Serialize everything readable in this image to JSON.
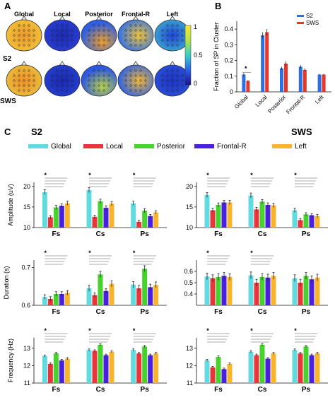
{
  "colors": {
    "global": "#61DAE0",
    "local": "#E8343A",
    "posterior": "#47D22E",
    "frontal_r": "#4A1FE0",
    "left": "#F7B52E",
    "s2_blue": "#2C6FE0",
    "sws_red": "#E8362A",
    "error": "#222222",
    "axis": "#111111"
  },
  "panel_a": {
    "letter": "A",
    "row_labels": [
      "S2",
      "SWS"
    ],
    "col_labels": [
      "Global",
      "Local",
      "Posterior",
      "Frontal-R",
      "Left"
    ],
    "colorbar_ticks": [
      "1",
      "0.5",
      "0"
    ]
  },
  "panel_b": {
    "letter": "B"
  },
  "panel_c": {
    "letter": "C",
    "group_labels": [
      "S2",
      "SWS"
    ],
    "legend": [
      "Global",
      "Local",
      "Posterior",
      "Frontal-R",
      "Left"
    ]
  },
  "chart_data": [
    {
      "id": "fraction",
      "type": "bar",
      "ylabel": "Fraction of SP in Cluster",
      "categories": [
        "Global",
        "Local",
        "Posterior",
        "Frontal-R",
        "Left"
      ],
      "ylim": [
        0,
        0.45
      ],
      "yticks": [
        0,
        0.1,
        0.2,
        0.3,
        0.4
      ],
      "yticklabels": [
        "0",
        "0.1",
        "0.2",
        "0.3",
        "0.4"
      ],
      "series": [
        {
          "name": "S2",
          "values": [
            0.11,
            0.36,
            0.15,
            0.16,
            0.11
          ],
          "errors": [
            0.01,
            0.02,
            0.01,
            0.01,
            0.005
          ]
        },
        {
          "name": "SWS",
          "values": [
            0.07,
            0.38,
            0.18,
            0.14,
            0.11
          ],
          "errors": [
            0.005,
            0.02,
            0.015,
            0.01,
            0.005
          ]
        }
      ],
      "significance": [
        "*"
      ]
    },
    {
      "id": "amp_s2",
      "type": "bar",
      "ylabel": "Amplitude (uV)",
      "categories": [
        "Fs",
        "Cs",
        "Ps"
      ],
      "ylim": [
        10,
        21
      ],
      "yticks": [
        10,
        15,
        20
      ],
      "yticklabels": [
        "10",
        "15",
        "20"
      ],
      "values": [
        [
          18.6,
          12.5,
          14.9,
          15.3,
          15.9
        ],
        [
          19.1,
          12.6,
          16.4,
          14.8,
          15.8
        ],
        [
          15.9,
          11.4,
          14.1,
          12.8,
          13.7
        ]
      ],
      "errors": [
        [
          0.6,
          0.4,
          0.5,
          0.5,
          0.5
        ],
        [
          0.6,
          0.4,
          0.5,
          0.5,
          0.5
        ],
        [
          0.5,
          0.4,
          0.5,
          0.4,
          0.4
        ]
      ],
      "significance": [
        "*",
        "*",
        "*"
      ]
    },
    {
      "id": "amp_sws",
      "type": "bar",
      "ylabel": "",
      "categories": [
        "Fs",
        "Cs",
        "Ps"
      ],
      "ylim": [
        10,
        21
      ],
      "yticks": [
        10,
        15,
        20
      ],
      "yticklabels": [
        "10",
        "15",
        "20"
      ],
      "values": [
        [
          17.9,
          14.2,
          15.5,
          16.1,
          16.1
        ],
        [
          17.8,
          14.4,
          16.3,
          15.5,
          15.4
        ],
        [
          14.2,
          11.8,
          13.2,
          13.0,
          12.8
        ]
      ],
      "errors": [
        [
          0.6,
          0.5,
          0.5,
          0.5,
          0.5
        ],
        [
          0.6,
          0.5,
          0.5,
          0.5,
          0.5
        ],
        [
          0.5,
          0.4,
          0.4,
          0.4,
          0.4
        ]
      ],
      "significance": [
        "*",
        "*",
        "*"
      ]
    },
    {
      "id": "dur_s2",
      "type": "bar",
      "ylabel": "Duration (s)",
      "categories": [
        "Fs",
        "Cs",
        "Ps"
      ],
      "ylim": [
        0.6,
        0.72
      ],
      "yticks": [
        0.6,
        0.7
      ],
      "yticklabels": [
        "0.6",
        "0.7"
      ],
      "values": [
        [
          0.622,
          0.617,
          0.63,
          0.63,
          0.633
        ],
        [
          0.645,
          0.627,
          0.682,
          0.638,
          0.657
        ],
        [
          0.655,
          0.645,
          0.697,
          0.648,
          0.654
        ]
      ],
      "errors": [
        [
          0.006,
          0.006,
          0.006,
          0.006,
          0.006
        ],
        [
          0.008,
          0.006,
          0.008,
          0.006,
          0.008
        ],
        [
          0.008,
          0.008,
          0.008,
          0.008,
          0.008
        ]
      ],
      "significance": [
        "*",
        "*",
        "*"
      ]
    },
    {
      "id": "dur_sws",
      "type": "bar",
      "ylabel": "",
      "categories": [
        "Fs",
        "Cs",
        "Ps"
      ],
      "ylim": [
        0.3,
        0.7
      ],
      "yticks": [
        0.4,
        0.5,
        0.6
      ],
      "yticklabels": [
        "0.4",
        "0.5",
        "0.6"
      ],
      "values": [
        [
          0.555,
          0.54,
          0.55,
          0.56,
          0.55
        ],
        [
          0.565,
          0.5,
          0.55,
          0.545,
          0.56
        ],
        [
          0.54,
          0.5,
          0.56,
          0.53,
          0.545
        ]
      ],
      "errors": [
        [
          0.03,
          0.03,
          0.03,
          0.03,
          0.03
        ],
        [
          0.03,
          0.03,
          0.03,
          0.03,
          0.03
        ],
        [
          0.03,
          0.03,
          0.03,
          0.03,
          0.03
        ]
      ],
      "significance": [
        "*",
        "*"
      ]
    },
    {
      "id": "freq_s2",
      "type": "bar",
      "ylabel": "Frequency (Hz)",
      "categories": [
        "Fs",
        "Cs",
        "Ps"
      ],
      "ylim": [
        11,
        13.6
      ],
      "yticks": [
        11,
        12,
        13
      ],
      "yticklabels": [
        "11",
        "12",
        "13"
      ],
      "values": [
        [
          12.55,
          12.1,
          12.7,
          12.3,
          12.4
        ],
        [
          12.9,
          12.85,
          13.2,
          12.6,
          12.8
        ],
        [
          12.9,
          12.7,
          13.1,
          12.6,
          12.7
        ]
      ],
      "errors": [
        [
          0.06,
          0.06,
          0.06,
          0.06,
          0.06
        ],
        [
          0.06,
          0.06,
          0.06,
          0.06,
          0.06
        ],
        [
          0.06,
          0.06,
          0.06,
          0.06,
          0.06
        ]
      ],
      "significance": [
        "*",
        "*",
        "*"
      ]
    },
    {
      "id": "freq_sws",
      "type": "bar",
      "ylabel": "",
      "categories": [
        "Fs",
        "Cs",
        "Ps"
      ],
      "ylim": [
        11,
        13.6
      ],
      "yticks": [
        11,
        12,
        13
      ],
      "yticklabels": [
        "11",
        "12",
        "13"
      ],
      "values": [
        [
          12.3,
          11.9,
          12.5,
          11.8,
          12.1
        ],
        [
          12.8,
          12.6,
          13.2,
          12.4,
          12.7
        ],
        [
          12.9,
          12.7,
          13.1,
          12.6,
          12.7
        ]
      ],
      "errors": [
        [
          0.06,
          0.06,
          0.06,
          0.06,
          0.06
        ],
        [
          0.06,
          0.06,
          0.06,
          0.06,
          0.06
        ],
        [
          0.06,
          0.06,
          0.06,
          0.06,
          0.06
        ]
      ],
      "significance": [
        "*",
        "*",
        "*"
      ]
    }
  ]
}
